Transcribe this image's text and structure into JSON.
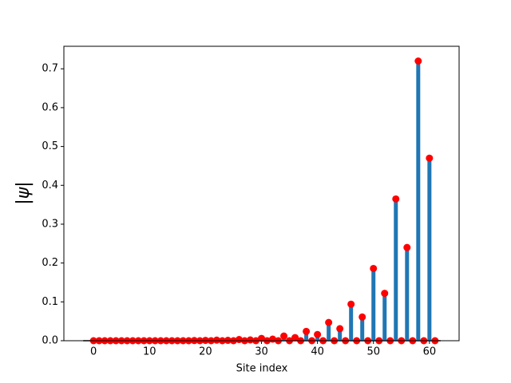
{
  "chart_data": {
    "type": "stem",
    "xlabel": "Site index",
    "ylabel": "|ψ|",
    "x": [
      0,
      1,
      2,
      3,
      4,
      5,
      6,
      7,
      8,
      9,
      10,
      11,
      12,
      13,
      14,
      15,
      16,
      17,
      18,
      19,
      20,
      21,
      22,
      23,
      24,
      25,
      26,
      27,
      28,
      29,
      30,
      31,
      32,
      33,
      34,
      35,
      36,
      37,
      38,
      39,
      40,
      41,
      42,
      43,
      44,
      45,
      46,
      47,
      48,
      49,
      50,
      51,
      52,
      53,
      54,
      55,
      56,
      57,
      58,
      59,
      60,
      61
    ],
    "values": [
      0,
      0,
      0,
      0,
      0,
      0,
      0,
      0,
      0,
      0,
      0,
      0,
      0,
      0,
      0,
      0,
      0,
      0,
      0.0005,
      0,
      0.0008,
      0,
      0.0015,
      0,
      0.001,
      0,
      0.003,
      0,
      0.002,
      0,
      0.006,
      0,
      0.004,
      0,
      0.012,
      0,
      0.008,
      0,
      0.024,
      0,
      0.016,
      0,
      0.047,
      0,
      0.031,
      0,
      0.094,
      0,
      0.061,
      0,
      0.186,
      0,
      0.122,
      0,
      0.365,
      0,
      0.24,
      0,
      0.72,
      0,
      0.47,
      0
    ],
    "stem_color": "#1f77b4",
    "marker_color": "#ff0000",
    "baseline_color": "#000000",
    "xlim": [
      -5.3,
      65.3
    ],
    "ylim": [
      0,
      0.758
    ],
    "xticks": [
      0,
      10,
      20,
      30,
      40,
      50,
      60
    ],
    "yticks": [
      {
        "value": 0,
        "label": "0.0"
      },
      0.1,
      0.2,
      0.3,
      0.4,
      0.5,
      0.6,
      0.7
    ]
  }
}
